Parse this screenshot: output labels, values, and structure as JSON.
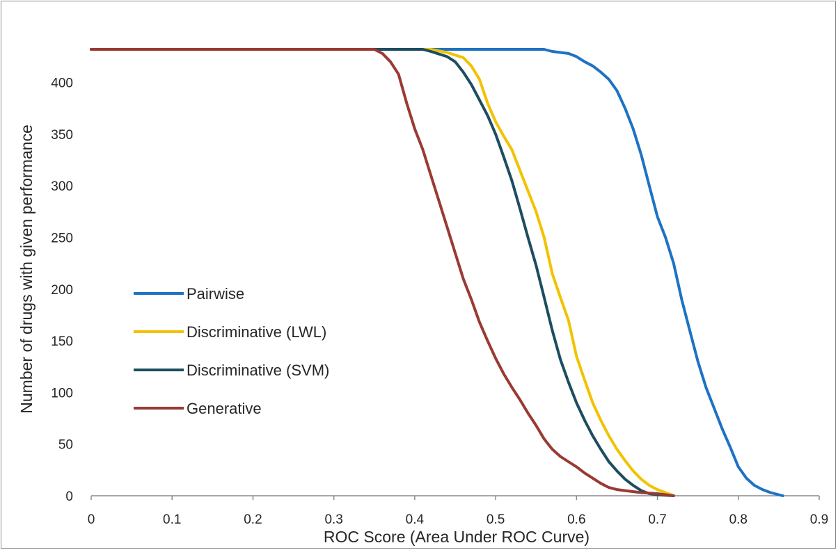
{
  "chart_data": {
    "type": "line",
    "title": "",
    "xlabel": "ROC Score (Area Under ROC Curve)",
    "ylabel": "Number of drugs with given performance",
    "xlim": [
      0,
      0.9
    ],
    "ylim": [
      0,
      432
    ],
    "x_ticks": [
      "0",
      "0.1",
      "0.2",
      "0.3",
      "0.4",
      "0.5",
      "0.6",
      "0.7",
      "0.8",
      "0.9"
    ],
    "y_ticks": [
      "0",
      "50",
      "100",
      "150",
      "200",
      "250",
      "300",
      "350",
      "400"
    ],
    "grid": false,
    "legend_position": "center-left",
    "series": [
      {
        "name": "Pairwise",
        "color": "#1f72c4",
        "points": [
          [
            0,
            432
          ],
          [
            0.56,
            432
          ],
          [
            0.57,
            430
          ],
          [
            0.59,
            428
          ],
          [
            0.6,
            425
          ],
          [
            0.61,
            420
          ],
          [
            0.62,
            416
          ],
          [
            0.63,
            410
          ],
          [
            0.64,
            403
          ],
          [
            0.65,
            392
          ],
          [
            0.66,
            375
          ],
          [
            0.67,
            355
          ],
          [
            0.68,
            330
          ],
          [
            0.69,
            300
          ],
          [
            0.7,
            270
          ],
          [
            0.71,
            250
          ],
          [
            0.72,
            225
          ],
          [
            0.73,
            190
          ],
          [
            0.74,
            160
          ],
          [
            0.75,
            130
          ],
          [
            0.76,
            105
          ],
          [
            0.77,
            85
          ],
          [
            0.78,
            65
          ],
          [
            0.79,
            47
          ],
          [
            0.8,
            28
          ],
          [
            0.81,
            17
          ],
          [
            0.82,
            10
          ],
          [
            0.83,
            6
          ],
          [
            0.84,
            3
          ],
          [
            0.85,
            1
          ],
          [
            0.855,
            0
          ]
        ]
      },
      {
        "name": "Discriminative (LWL)",
        "color": "#f2c200",
        "points": [
          [
            0,
            432
          ],
          [
            0.42,
            432
          ],
          [
            0.44,
            429
          ],
          [
            0.46,
            424
          ],
          [
            0.47,
            416
          ],
          [
            0.48,
            403
          ],
          [
            0.49,
            380
          ],
          [
            0.5,
            362
          ],
          [
            0.51,
            348
          ],
          [
            0.52,
            335
          ],
          [
            0.53,
            315
          ],
          [
            0.54,
            295
          ],
          [
            0.55,
            275
          ],
          [
            0.56,
            250
          ],
          [
            0.57,
            215
          ],
          [
            0.58,
            192
          ],
          [
            0.59,
            170
          ],
          [
            0.6,
            135
          ],
          [
            0.61,
            112
          ],
          [
            0.62,
            90
          ],
          [
            0.63,
            73
          ],
          [
            0.64,
            58
          ],
          [
            0.65,
            45
          ],
          [
            0.66,
            34
          ],
          [
            0.67,
            24
          ],
          [
            0.68,
            16
          ],
          [
            0.69,
            10
          ],
          [
            0.7,
            6
          ],
          [
            0.71,
            3
          ],
          [
            0.72,
            0
          ]
        ]
      },
      {
        "name": "Discriminative (SVM)",
        "color": "#1d4d60",
        "points": [
          [
            0,
            432
          ],
          [
            0.41,
            432
          ],
          [
            0.42,
            430
          ],
          [
            0.44,
            425
          ],
          [
            0.45,
            420
          ],
          [
            0.46,
            410
          ],
          [
            0.47,
            398
          ],
          [
            0.48,
            383
          ],
          [
            0.49,
            368
          ],
          [
            0.5,
            350
          ],
          [
            0.51,
            328
          ],
          [
            0.52,
            305
          ],
          [
            0.53,
            278
          ],
          [
            0.54,
            250
          ],
          [
            0.55,
            223
          ],
          [
            0.56,
            192
          ],
          [
            0.57,
            160
          ],
          [
            0.58,
            132
          ],
          [
            0.59,
            110
          ],
          [
            0.6,
            90
          ],
          [
            0.61,
            73
          ],
          [
            0.62,
            58
          ],
          [
            0.63,
            45
          ],
          [
            0.64,
            33
          ],
          [
            0.65,
            24
          ],
          [
            0.66,
            16
          ],
          [
            0.67,
            10
          ],
          [
            0.68,
            5
          ],
          [
            0.69,
            2
          ],
          [
            0.7,
            1
          ],
          [
            0.72,
            0
          ]
        ]
      },
      {
        "name": "Generative",
        "color": "#9a3a34",
        "points": [
          [
            0,
            432
          ],
          [
            0.35,
            432
          ],
          [
            0.36,
            428
          ],
          [
            0.37,
            420
          ],
          [
            0.38,
            408
          ],
          [
            0.39,
            380
          ],
          [
            0.4,
            355
          ],
          [
            0.41,
            335
          ],
          [
            0.42,
            310
          ],
          [
            0.43,
            285
          ],
          [
            0.44,
            260
          ],
          [
            0.45,
            235
          ],
          [
            0.46,
            210
          ],
          [
            0.47,
            190
          ],
          [
            0.48,
            168
          ],
          [
            0.49,
            150
          ],
          [
            0.5,
            133
          ],
          [
            0.51,
            118
          ],
          [
            0.52,
            105
          ],
          [
            0.53,
            93
          ],
          [
            0.54,
            80
          ],
          [
            0.55,
            68
          ],
          [
            0.56,
            55
          ],
          [
            0.57,
            45
          ],
          [
            0.58,
            38
          ],
          [
            0.59,
            33
          ],
          [
            0.6,
            28
          ],
          [
            0.61,
            22
          ],
          [
            0.62,
            17
          ],
          [
            0.63,
            12
          ],
          [
            0.64,
            8
          ],
          [
            0.65,
            6
          ],
          [
            0.66,
            5
          ],
          [
            0.68,
            3
          ],
          [
            0.7,
            2
          ],
          [
            0.72,
            0
          ]
        ]
      }
    ]
  }
}
